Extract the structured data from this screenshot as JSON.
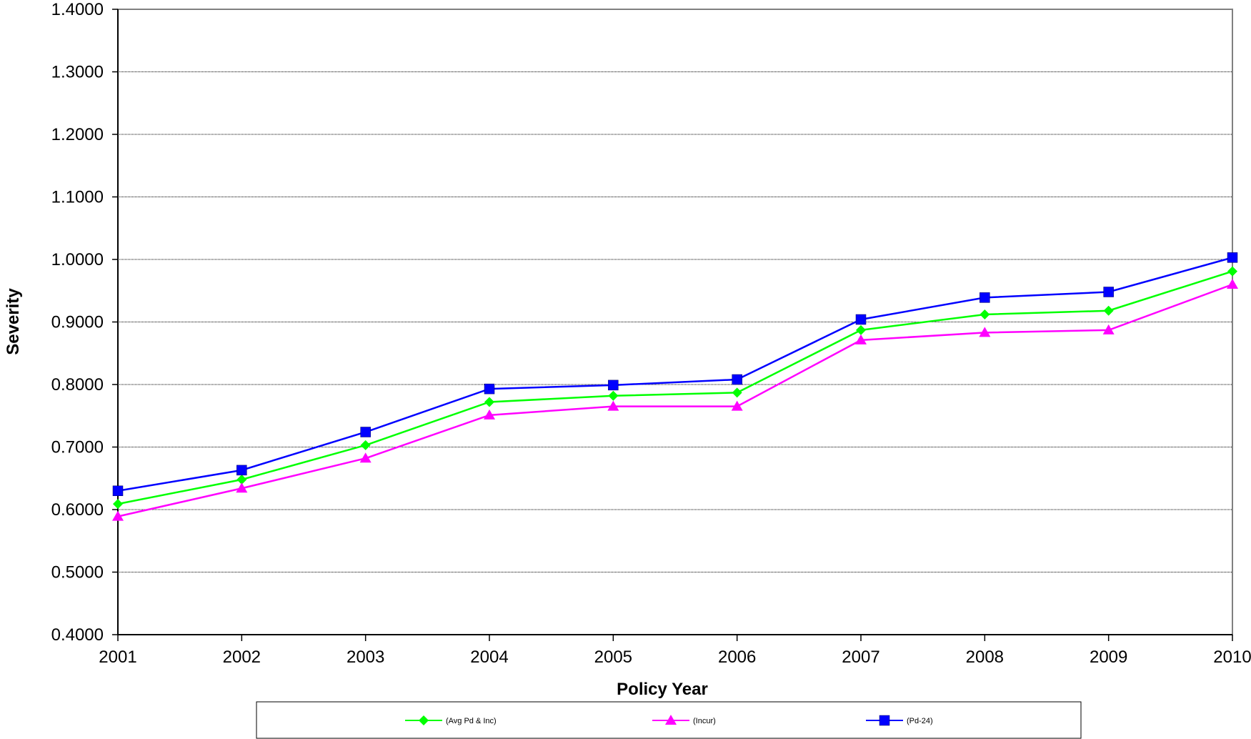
{
  "chart_data": {
    "type": "line",
    "title": "",
    "xlabel": "Policy Year",
    "ylabel": "Severity",
    "x": [
      2001,
      2002,
      2003,
      2004,
      2005,
      2006,
      2007,
      2008,
      2009,
      2010
    ],
    "ylim": [
      0.4,
      1.4
    ],
    "yticks": [
      "0.4000",
      "0.5000",
      "0.6000",
      "0.7000",
      "0.8000",
      "0.9000",
      "1.0000",
      "1.1000",
      "1.2000",
      "1.3000",
      "1.4000"
    ],
    "grid": true,
    "legend_position": "bottom",
    "series": [
      {
        "name": "(Avg Pd & Inc)",
        "color": "#00ff00",
        "marker": "diamond",
        "values": [
          0.609,
          0.648,
          0.703,
          0.772,
          0.782,
          0.787,
          0.887,
          0.912,
          0.918,
          0.981
        ]
      },
      {
        "name": "(Incur)",
        "color": "#ff00ff",
        "marker": "triangle",
        "values": [
          0.589,
          0.634,
          0.682,
          0.751,
          0.765,
          0.765,
          0.871,
          0.883,
          0.887,
          0.96
        ]
      },
      {
        "name": "(Pd-24)",
        "color": "#0000ff",
        "marker": "square",
        "values": [
          0.63,
          0.663,
          0.724,
          0.793,
          0.799,
          0.808,
          0.904,
          0.939,
          0.948,
          1.003
        ]
      }
    ]
  }
}
